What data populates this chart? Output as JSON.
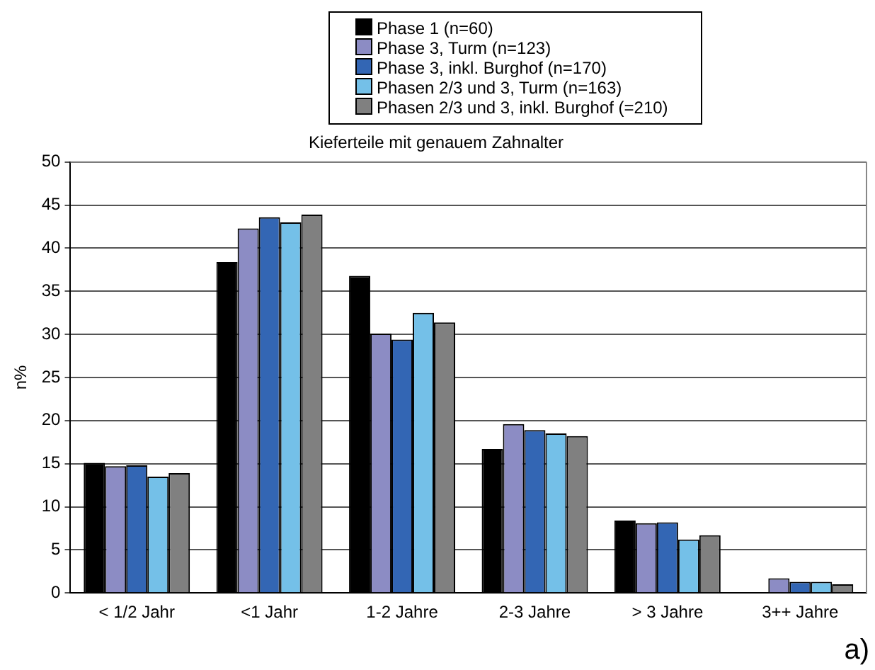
{
  "chart_data": {
    "type": "bar",
    "title": "Kieferteile mit genauem Zahnalter",
    "ylabel": "n%",
    "categories": [
      "< 1/2 Jahr",
      "<1 Jahr",
      "1-2 Jahre",
      "2-3 Jahre",
      "> 3 Jahre",
      "3++ Jahre"
    ],
    "series": [
      {
        "name": "Phase 1 (n=60)",
        "color": "#000000",
        "values": [
          15.1,
          38.4,
          36.8,
          16.7,
          8.4,
          0
        ]
      },
      {
        "name": "Phase 3, Turm (n=123)",
        "color": "#8c8cc4",
        "values": [
          14.7,
          42.3,
          30.1,
          19.6,
          8.1,
          1.7
        ]
      },
      {
        "name": "Phase 3, inkl. Burghof (n=170)",
        "color": "#3366b4",
        "values": [
          14.8,
          43.6,
          29.4,
          18.9,
          8.2,
          1.3
        ]
      },
      {
        "name": "Phasen 2/3 und 3, Turm (n=163)",
        "color": "#74c0e8",
        "values": [
          13.5,
          43.0,
          32.5,
          18.5,
          6.2,
          1.3
        ]
      },
      {
        "name": "Phasen 2/3 und 3, inkl. Burghof (=210)",
        "color": "#808080",
        "values": [
          13.9,
          43.9,
          31.4,
          18.2,
          6.7,
          1.0
        ]
      }
    ],
    "ylim": [
      0,
      50
    ],
    "yticks": [
      0,
      5,
      10,
      15,
      20,
      25,
      30,
      35,
      40,
      45,
      50
    ],
    "grid": "y",
    "legend": "top",
    "annotations": [
      "a)"
    ]
  }
}
